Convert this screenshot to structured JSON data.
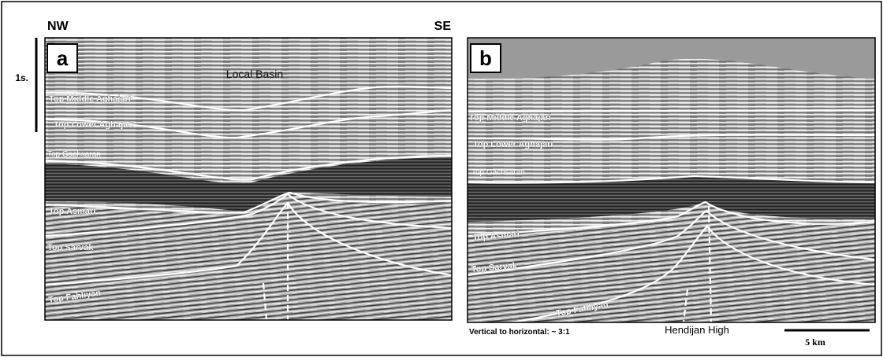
{
  "header": {
    "left": "NW",
    "right": "SE"
  },
  "time_scale": "1s.",
  "panels": [
    {
      "label": "a",
      "annotation": "Local Basin",
      "horizons": [
        "Top Middle Aghajari",
        "Top Lower Aghajari",
        "Top Gachsaran",
        "Top Asmari",
        "Top Sarvak",
        "Top Fahliyan"
      ]
    },
    {
      "label": "b",
      "horizons": [
        "Top Middle Aghajari",
        "Top Lower Aghajari",
        "Top Gachsaran",
        "Top Asmari",
        "Top Sarvak",
        "Top Fahliyan"
      ]
    }
  ],
  "footer": {
    "ratio": "Vertical to horizontal: ~ 3:1",
    "annotation": "Hendijan High",
    "scale": "5 km"
  }
}
